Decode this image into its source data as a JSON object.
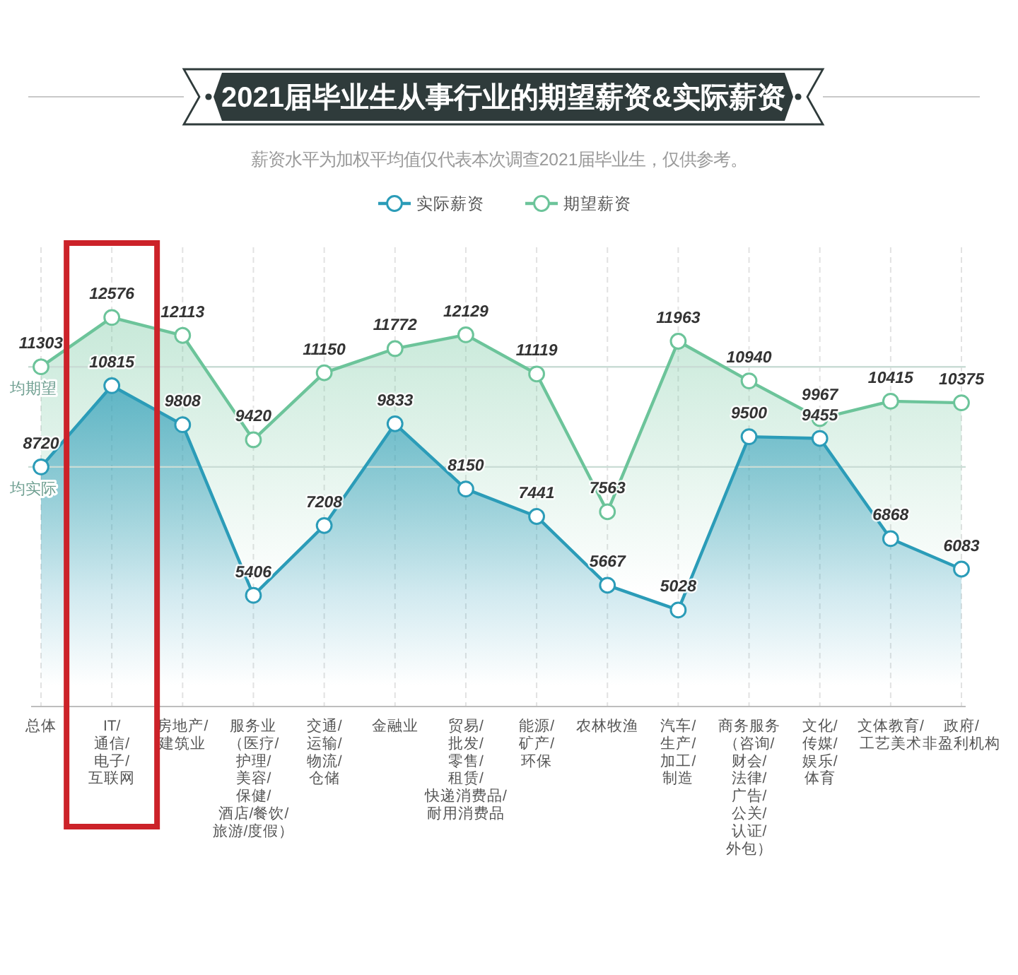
{
  "chart_data": {
    "type": "area",
    "title": "2021届毕业生从事行业的期望薪资&实际薪资",
    "subtitle": "薪资水平为加权平均值仅代表本次调查2021届毕业生，仅供参考。",
    "categories": [
      "总体",
      "IT/\n通信/\n电子/\n互联网",
      "房地产/\n建筑业",
      "服务业（医疗/\n护理/\n美容/\n保健/\n酒店/餐饮/\n旅游/度假）",
      "交通/\n运输/\n物流/\n仓储",
      "金融业",
      "贸易/\n批发/\n零售/\n租赁/\n快递消费品/\n耐用消费品",
      "能源/\n矿产/\n环保",
      "农林牧渔",
      "汽车/\n生产/\n加工/\n制造",
      "商务服务（咨询/\n财会/\n法律/\n广告/\n公关/\n认证/\n外包）",
      "文化/\n传媒/\n娱乐/\n体育",
      "文体教育/\n工艺美术",
      "政府/\n非盈利机构"
    ],
    "series": [
      {
        "name": "实际薪资",
        "color": "#2b9cb8",
        "values": [
          8720,
          10815,
          9808,
          5406,
          7208,
          9833,
          8150,
          7441,
          5667,
          5028,
          9500,
          9455,
          6868,
          6083
        ]
      },
      {
        "name": "期望薪资",
        "color": "#6cc49a",
        "values": [
          11303,
          12576,
          12113,
          9420,
          11150,
          11772,
          12129,
          11119,
          7563,
          11963,
          10940,
          9967,
          10415,
          10375
        ]
      }
    ],
    "ref_lines": [
      {
        "axis": "y",
        "value": 11303,
        "label": "均期望"
      },
      {
        "axis": "y",
        "value": 8720,
        "label": "均实际"
      }
    ],
    "data_labels": true,
    "marker": "circle",
    "grid": "x",
    "legend": "top",
    "tick_labels": "x"
  }
}
